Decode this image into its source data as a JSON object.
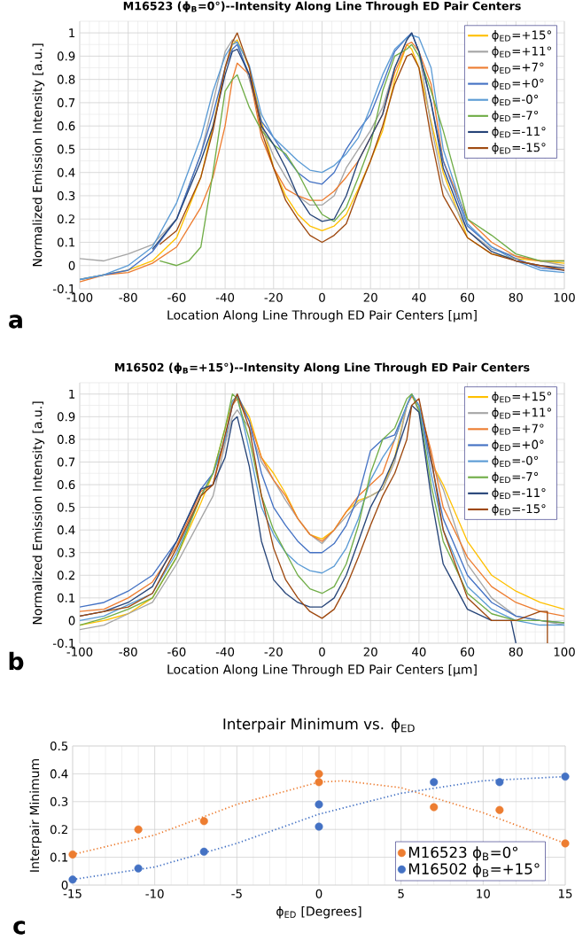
{
  "chart_data": [
    {
      "type": "line",
      "title": "M16523 (ϕ$_{B}$=0°)--Intensity Along Line Through ED Pair Centers",
      "xlabel": "Location Along Line Through ED Pair Centers [µm]",
      "ylabel": "Normalized Emission Intensity [a.u.]",
      "xlim": [
        -100,
        100
      ],
      "xticks": [
        -100,
        -80,
        -60,
        -40,
        -20,
        0,
        20,
        40,
        60,
        80,
        100
      ],
      "ylim": [
        -0.1,
        1.05
      ],
      "yticks": [
        -0.1,
        0,
        0.1,
        0.2,
        0.3,
        0.4,
        0.5,
        0.6,
        0.7,
        0.8,
        0.9,
        1
      ],
      "grid": true,
      "legend": "top right",
      "marker": "none",
      "line_style": "solid",
      "annotations": [
        "a"
      ],
      "series": [
        {
          "name": "ϕ$_{ED}$=+15°",
          "color": "#ffc000",
          "x": [
            -100,
            -80,
            -70,
            -60,
            -50,
            -45,
            -40,
            -37,
            -35,
            -30,
            -25,
            -20,
            -15,
            -10,
            -5,
            0,
            5,
            10,
            15,
            20,
            25,
            30,
            35,
            37,
            40,
            45,
            50,
            60,
            70,
            80,
            90,
            100
          ],
          "values": [
            -0.06,
            -0.02,
            0.02,
            0.12,
            0.38,
            0.6,
            0.85,
            0.95,
            0.97,
            0.85,
            0.62,
            0.42,
            0.3,
            0.22,
            0.17,
            0.15,
            0.17,
            0.22,
            0.33,
            0.45,
            0.58,
            0.8,
            0.95,
            0.93,
            0.85,
            0.62,
            0.4,
            0.12,
            0.05,
            0.03,
            0.02,
            0.01
          ]
        },
        {
          "name": "ϕ$_{ED}$=+11°",
          "color": "#a5a5a5",
          "x": [
            -100,
            -90,
            -80,
            -70,
            -60,
            -50,
            -45,
            -40,
            -37,
            -35,
            -30,
            -25,
            -20,
            -15,
            -10,
            -5,
            0,
            5,
            10,
            15,
            20,
            25,
            30,
            35,
            37,
            40,
            45,
            50,
            60,
            70,
            80,
            90,
            100
          ],
          "values": [
            0.03,
            0.02,
            0.05,
            0.09,
            0.2,
            0.48,
            0.7,
            0.92,
            0.97,
            0.96,
            0.8,
            0.6,
            0.47,
            0.38,
            0.3,
            0.26,
            0.26,
            0.3,
            0.42,
            0.5,
            0.58,
            0.68,
            0.85,
            0.97,
            1.0,
            0.92,
            0.6,
            0.35,
            0.15,
            0.07,
            0.04,
            0.02,
            0.0
          ]
        },
        {
          "name": "ϕ$_{ED}$=+7°",
          "color": "#ed7d31",
          "x": [
            -100,
            -90,
            -80,
            -70,
            -60,
            -50,
            -45,
            -40,
            -37,
            -35,
            -30,
            -25,
            -20,
            -15,
            -10,
            -5,
            0,
            5,
            10,
            15,
            20,
            25,
            30,
            35,
            37,
            40,
            45,
            50,
            60,
            70,
            80,
            90,
            100
          ],
          "values": [
            -0.07,
            -0.04,
            -0.03,
            0.01,
            0.08,
            0.25,
            0.38,
            0.6,
            0.8,
            0.87,
            0.82,
            0.55,
            0.42,
            0.33,
            0.3,
            0.28,
            0.28,
            0.32,
            0.38,
            0.45,
            0.55,
            0.65,
            0.83,
            0.95,
            0.96,
            0.92,
            0.78,
            0.45,
            0.2,
            0.1,
            0.04,
            0.02,
            0.02
          ]
        },
        {
          "name": "ϕ$_{ED}$=+0°",
          "color": "#4472c4",
          "x": [
            -100,
            -90,
            -80,
            -70,
            -60,
            -50,
            -45,
            -40,
            -37,
            -35,
            -30,
            -25,
            -20,
            -15,
            -10,
            -5,
            0,
            5,
            10,
            15,
            20,
            25,
            30,
            35,
            37,
            40,
            45,
            50,
            60,
            70,
            80,
            90,
            100
          ],
          "values": [
            -0.06,
            -0.04,
            -0.02,
            0.06,
            0.2,
            0.48,
            0.65,
            0.85,
            0.93,
            0.95,
            0.82,
            0.62,
            0.55,
            0.47,
            0.4,
            0.36,
            0.35,
            0.4,
            0.5,
            0.58,
            0.65,
            0.78,
            0.92,
            0.98,
            1.0,
            0.92,
            0.7,
            0.45,
            0.17,
            0.08,
            0.03,
            -0.01,
            -0.02
          ]
        },
        {
          "name": "ϕ$_{ED}$=-0°",
          "color": "#5b9bd5",
          "x": [
            -100,
            -90,
            -80,
            -70,
            -60,
            -50,
            -45,
            -40,
            -37,
            -35,
            -30,
            -25,
            -20,
            -15,
            -10,
            -5,
            0,
            5,
            10,
            15,
            20,
            25,
            30,
            35,
            37,
            40,
            45,
            50,
            60,
            70,
            80,
            90,
            100
          ],
          "values": [
            -0.06,
            -0.04,
            0.0,
            0.08,
            0.27,
            0.55,
            0.75,
            0.9,
            0.95,
            0.96,
            0.86,
            0.65,
            0.55,
            0.5,
            0.45,
            0.41,
            0.4,
            0.43,
            0.48,
            0.55,
            0.68,
            0.82,
            0.93,
            0.98,
            0.99,
            0.98,
            0.85,
            0.5,
            0.18,
            0.08,
            0.02,
            -0.02,
            -0.03
          ]
        },
        {
          "name": "ϕ$_{ED}$=-7°",
          "color": "#70ad47",
          "x": [
            -67,
            -60,
            -55,
            -50,
            -45,
            -40,
            -37,
            -35,
            -30,
            -25,
            -20,
            -15,
            -10,
            -5,
            0,
            5,
            10,
            15,
            20,
            25,
            30,
            35,
            37,
            40,
            45,
            50,
            60,
            70,
            80,
            90,
            100
          ],
          "values": [
            0.02,
            0.0,
            0.02,
            0.08,
            0.4,
            0.75,
            0.8,
            0.82,
            0.68,
            0.58,
            0.52,
            0.48,
            0.4,
            0.3,
            0.22,
            0.19,
            0.25,
            0.38,
            0.52,
            0.75,
            0.9,
            0.93,
            0.95,
            0.9,
            0.75,
            0.58,
            0.2,
            0.13,
            0.05,
            0.02,
            0.02
          ]
        },
        {
          "name": "ϕ$_{ED}$=-11°",
          "color": "#264478",
          "x": [
            -70,
            -60,
            -50,
            -45,
            -40,
            -37,
            -35,
            -30,
            -25,
            -20,
            -15,
            -10,
            -5,
            0,
            5,
            10,
            15,
            20,
            25,
            30,
            35,
            37,
            40,
            45,
            50,
            60,
            70,
            80,
            90,
            100
          ],
          "values": [
            0.07,
            0.2,
            0.45,
            0.6,
            0.82,
            0.92,
            0.93,
            0.82,
            0.6,
            0.52,
            0.42,
            0.3,
            0.22,
            0.19,
            0.2,
            0.3,
            0.45,
            0.55,
            0.65,
            0.85,
            0.97,
            1.0,
            0.92,
            0.7,
            0.42,
            0.15,
            0.06,
            0.02,
            0.0,
            -0.01
          ]
        },
        {
          "name": "ϕ$_{ED}$=-15°",
          "color": "#9e480e",
          "x": [
            -67,
            -60,
            -50,
            -45,
            -40,
            -37,
            -35,
            -30,
            -25,
            -20,
            -15,
            -10,
            -5,
            0,
            5,
            10,
            15,
            20,
            25,
            30,
            35,
            37,
            40,
            45,
            50,
            60,
            70,
            80,
            90,
            100
          ],
          "values": [
            0.09,
            0.15,
            0.38,
            0.58,
            0.85,
            0.96,
            1.0,
            0.85,
            0.58,
            0.42,
            0.28,
            0.2,
            0.13,
            0.1,
            0.13,
            0.18,
            0.32,
            0.45,
            0.6,
            0.78,
            0.9,
            0.91,
            0.85,
            0.55,
            0.3,
            0.12,
            0.05,
            0.02,
            0.0,
            -0.02
          ]
        }
      ]
    },
    {
      "type": "line",
      "title": "M16502 (ϕ$_{B}$=+15°)--Intensity Along Line Through ED Pair Centers",
      "xlabel": "Location Along Line Through ED Pair Centers [µm]",
      "ylabel": "Normalized Emission Intensity [a.u.]",
      "xlim": [
        -100,
        100
      ],
      "xticks": [
        -100,
        -80,
        -60,
        -40,
        -20,
        0,
        20,
        40,
        60,
        80,
        100
      ],
      "ylim": [
        -0.1,
        1.05
      ],
      "yticks": [
        -0.1,
        0,
        0.1,
        0.2,
        0.3,
        0.4,
        0.5,
        0.6,
        0.7,
        0.8,
        0.9,
        1
      ],
      "grid": true,
      "legend": "top right",
      "marker": "none",
      "line_style": "solid",
      "annotations": [
        "b"
      ],
      "series": [
        {
          "name": "ϕ$_{ED}$=+15°",
          "color": "#ffc000",
          "x": [
            -100,
            -90,
            -80,
            -70,
            -60,
            -50,
            -45,
            -40,
            -37,
            -35,
            -30,
            -25,
            -20,
            -15,
            -10,
            -5,
            0,
            5,
            10,
            15,
            20,
            25,
            30,
            35,
            37,
            40,
            45,
            50,
            60,
            70,
            80,
            90,
            100
          ],
          "values": [
            -0.02,
            0.0,
            0.03,
            0.1,
            0.28,
            0.52,
            0.65,
            0.85,
            0.97,
            0.99,
            0.9,
            0.72,
            0.65,
            0.56,
            0.45,
            0.38,
            0.36,
            0.4,
            0.48,
            0.53,
            0.55,
            0.58,
            0.72,
            0.95,
            1.0,
            0.92,
            0.7,
            0.6,
            0.35,
            0.2,
            0.13,
            0.08,
            0.05
          ]
        },
        {
          "name": "ϕ$_{ED}$=+11°",
          "color": "#a5a5a5",
          "x": [
            -100,
            -90,
            -80,
            -70,
            -60,
            -50,
            -45,
            -40,
            -37,
            -35,
            -30,
            -25,
            -20,
            -15,
            -10,
            -5,
            0,
            5,
            10,
            15,
            20,
            25,
            30,
            35,
            37,
            40,
            45,
            50,
            60,
            70,
            80,
            90,
            100
          ],
          "values": [
            -0.04,
            -0.02,
            0.03,
            0.08,
            0.25,
            0.45,
            0.55,
            0.78,
            0.9,
            0.93,
            0.85,
            0.7,
            0.62,
            0.53,
            0.45,
            0.38,
            0.34,
            0.4,
            0.46,
            0.52,
            0.55,
            0.58,
            0.7,
            0.95,
            1.0,
            0.92,
            0.7,
            0.58,
            0.25,
            0.1,
            0.02,
            0.0,
            -0.02
          ]
        },
        {
          "name": "ϕ$_{ED}$=+7°",
          "color": "#ed7d31",
          "x": [
            -100,
            -90,
            -80,
            -70,
            -60,
            -50,
            -45,
            -40,
            -37,
            -35,
            -30,
            -25,
            -20,
            -15,
            -10,
            -5,
            0,
            5,
            10,
            15,
            20,
            25,
            30,
            35,
            37,
            40,
            45,
            50,
            60,
            70,
            80,
            90,
            100
          ],
          "values": [
            0.04,
            0.05,
            0.1,
            0.17,
            0.33,
            0.57,
            0.6,
            0.8,
            0.95,
            0.98,
            0.88,
            0.72,
            0.62,
            0.55,
            0.45,
            0.38,
            0.35,
            0.4,
            0.48,
            0.55,
            0.6,
            0.65,
            0.8,
            0.95,
            0.99,
            0.95,
            0.75,
            0.5,
            0.28,
            0.15,
            0.08,
            0.04,
            0.02
          ]
        },
        {
          "name": "ϕ$_{ED}$=+0°",
          "color": "#4472c4",
          "x": [
            -100,
            -90,
            -80,
            -70,
            -60,
            -50,
            -45,
            -40,
            -37,
            -35,
            -30,
            -25,
            -20,
            -15,
            -10,
            -5,
            0,
            5,
            10,
            15,
            20,
            25,
            30,
            35,
            37,
            40,
            45,
            50,
            60,
            70,
            80,
            90,
            100
          ],
          "values": [
            0.06,
            0.08,
            0.13,
            0.2,
            0.35,
            0.58,
            0.65,
            0.8,
            0.95,
            1.0,
            0.88,
            0.65,
            0.5,
            0.42,
            0.35,
            0.3,
            0.3,
            0.34,
            0.42,
            0.55,
            0.75,
            0.8,
            0.82,
            0.95,
            1.0,
            0.95,
            0.7,
            0.45,
            0.2,
            0.08,
            0.02,
            0.0,
            -0.01
          ]
        },
        {
          "name": "ϕ$_{ED}$=-0°",
          "color": "#5b9bd5",
          "x": [
            -100,
            -90,
            -80,
            -70,
            -60,
            -50,
            -45,
            -40,
            -37,
            -35,
            -30,
            -25,
            -20,
            -15,
            -10,
            -5,
            0,
            5,
            10,
            15,
            20,
            25,
            30,
            35,
            37,
            40,
            45,
            50,
            60,
            70,
            80,
            90,
            100
          ],
          "values": [
            0.0,
            0.02,
            0.07,
            0.12,
            0.3,
            0.55,
            0.65,
            0.8,
            0.97,
            0.99,
            0.75,
            0.5,
            0.38,
            0.3,
            0.25,
            0.22,
            0.21,
            0.24,
            0.32,
            0.45,
            0.62,
            0.72,
            0.8,
            0.95,
            1.0,
            0.95,
            0.65,
            0.4,
            0.15,
            0.05,
            0.0,
            -0.02,
            -0.02
          ]
        },
        {
          "name": "ϕ$_{ED}$=-7°",
          "color": "#70ad47",
          "x": [
            -100,
            -90,
            -80,
            -70,
            -60,
            -50,
            -45,
            -40,
            -37,
            -35,
            -30,
            -25,
            -20,
            -15,
            -10,
            -5,
            0,
            5,
            10,
            15,
            20,
            25,
            30,
            35,
            37,
            40,
            45,
            50,
            60,
            70,
            80,
            90,
            100
          ],
          "values": [
            -0.02,
            0.01,
            0.05,
            0.1,
            0.28,
            0.55,
            0.65,
            0.85,
            1.0,
            0.98,
            0.8,
            0.55,
            0.4,
            0.3,
            0.2,
            0.14,
            0.12,
            0.15,
            0.25,
            0.42,
            0.65,
            0.8,
            0.85,
            0.98,
            1.0,
            0.93,
            0.6,
            0.35,
            0.12,
            0.03,
            0.0,
            0.0,
            -0.01
          ]
        },
        {
          "name": "ϕ$_{ED}$=-11°",
          "color": "#264478",
          "x": [
            -100,
            -90,
            -80,
            -70,
            -60,
            -50,
            -45,
            -40,
            -37,
            -35,
            -30,
            -25,
            -20,
            -15,
            -10,
            -5,
            0,
            5,
            10,
            15,
            20,
            25,
            30,
            35,
            37,
            40,
            45,
            50,
            60,
            70,
            78,
            80
          ],
          "values": [
            0.02,
            0.04,
            0.08,
            0.15,
            0.35,
            0.58,
            0.6,
            0.72,
            0.88,
            0.9,
            0.68,
            0.35,
            0.18,
            0.12,
            0.08,
            0.06,
            0.06,
            0.1,
            0.2,
            0.35,
            0.5,
            0.6,
            0.72,
            0.88,
            0.95,
            0.92,
            0.55,
            0.25,
            0.05,
            0.0,
            0.0,
            -0.1
          ]
        },
        {
          "name": "ϕ$_{ED}$=-15°",
          "color": "#9e480e",
          "x": [
            -100,
            -90,
            -80,
            -70,
            -60,
            -50,
            -45,
            -40,
            -37,
            -35,
            -30,
            -25,
            -20,
            -15,
            -10,
            -5,
            0,
            5,
            10,
            15,
            20,
            25,
            30,
            35,
            37,
            40,
            45,
            50,
            60,
            70,
            80,
            90,
            93,
            93
          ],
          "values": [
            0.02,
            0.04,
            0.06,
            0.12,
            0.32,
            0.55,
            0.6,
            0.82,
            0.95,
            1.0,
            0.85,
            0.55,
            0.32,
            0.18,
            0.1,
            0.04,
            0.01,
            0.05,
            0.15,
            0.28,
            0.42,
            0.55,
            0.65,
            0.8,
            0.95,
            0.98,
            0.72,
            0.4,
            0.1,
            0.0,
            0.0,
            0.04,
            0.04,
            -0.1
          ]
        }
      ]
    },
    {
      "type": "scatter",
      "title": "Interpair Minimum vs. ϕ$_{ED}$",
      "xlabel": "ϕ$_{ED}$ [Degrees]",
      "ylabel": "Interpair Minimum",
      "xlim": [
        -15,
        15
      ],
      "xticks": [
        -15,
        -10,
        -5,
        0,
        5,
        10,
        15
      ],
      "ylim": [
        0,
        0.5
      ],
      "yticks": [
        0,
        0.1,
        0.2,
        0.3,
        0.4,
        0.5
      ],
      "grid": true,
      "legend": "bottom right",
      "marker": "circle",
      "annotations": [
        "c"
      ],
      "series": [
        {
          "name": "M16523 ϕ$_{B}$=0°",
          "color": "#ed7d31",
          "x": [
            -15,
            -11,
            -7,
            0,
            0,
            7,
            11,
            15
          ],
          "values": [
            0.11,
            0.2,
            0.23,
            0.4,
            0.37,
            0.28,
            0.27,
            0.15
          ]
        },
        {
          "name": "M16502 ϕ$_{B}$=+15°",
          "color": "#4472c4",
          "x": [
            -15,
            -11,
            -7,
            0,
            0,
            7,
            11,
            15
          ],
          "values": [
            0.02,
            0.06,
            0.12,
            0.29,
            0.21,
            0.37,
            0.37,
            0.39
          ]
        },
        {
          "type": "line",
          "line_style": "dotted",
          "marker": "none",
          "color": "#ed7d31",
          "x": [
            -15,
            -10,
            -5,
            0,
            1.5,
            5,
            10,
            15
          ],
          "values": [
            0.11,
            0.18,
            0.29,
            0.37,
            0.375,
            0.35,
            0.26,
            0.15
          ]
        },
        {
          "type": "line",
          "line_style": "dotted",
          "marker": "none",
          "color": "#4472c4",
          "x": [
            -15,
            -10,
            -5,
            0,
            5,
            10,
            15
          ],
          "values": [
            0.02,
            0.065,
            0.15,
            0.255,
            0.33,
            0.375,
            0.39
          ]
        }
      ]
    }
  ]
}
